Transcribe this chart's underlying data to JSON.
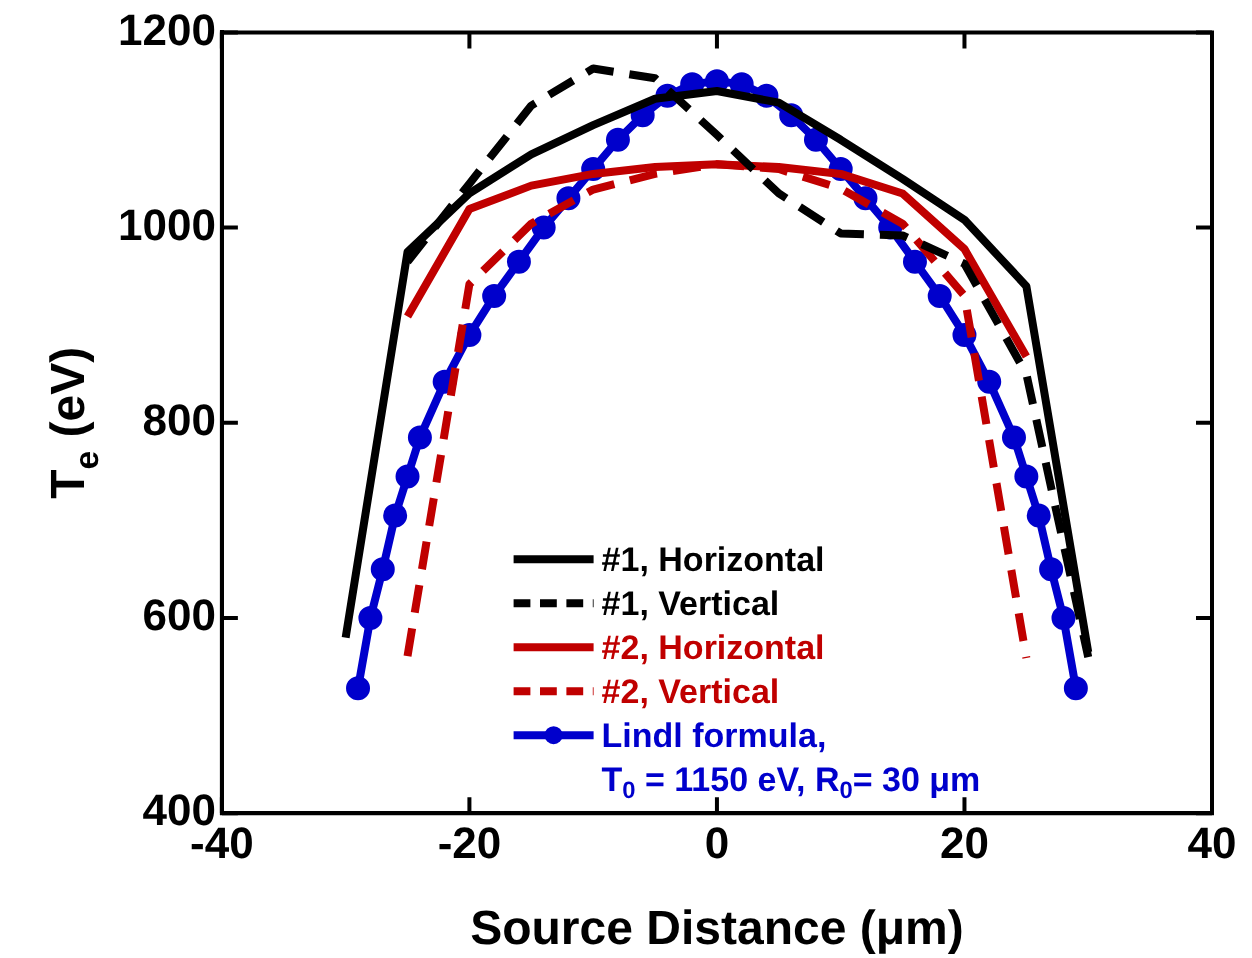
{
  "chart_data": {
    "type": "line",
    "xlabel": "Source Distance (μm)",
    "ylabel": "T$_{e}$ (eV)",
    "xlim": [
      -40,
      40
    ],
    "xticks": [
      -40,
      -20,
      0,
      20,
      40
    ],
    "ylim": [
      400,
      1200
    ],
    "yticks": [
      400,
      600,
      800,
      1000,
      1200
    ],
    "grid": false,
    "legend": "bottom",
    "marker": "none",
    "series": [
      {
        "name": "#1, Horizontal",
        "color": "#000000",
        "line_style": "solid",
        "x": [
          -30,
          -25,
          -20,
          -15,
          -10,
          -5,
          0,
          5,
          10,
          15,
          20,
          25,
          30
        ],
        "values": [
          580,
          975,
          1035,
          1075,
          1105,
          1132,
          1140,
          1128,
          1090,
          1050,
          1008,
          940,
          565
        ]
      },
      {
        "name": "#1, Vertical",
        "color": "#000000",
        "line_style": "dashed",
        "x": [
          -25,
          -20,
          -15,
          -10,
          -5,
          0,
          5,
          10,
          15,
          20,
          25,
          30
        ],
        "values": [
          965,
          1045,
          1125,
          1163,
          1153,
          1095,
          1035,
          994,
          992,
          963,
          850,
          560
        ]
      },
      {
        "name": "#2, Horizontal",
        "color": "#c00000",
        "line_style": "solid",
        "x": [
          -25,
          -20,
          -15,
          -10,
          -5,
          0,
          5,
          10,
          15,
          20,
          25
        ],
        "values": [
          909,
          1019,
          1043,
          1055,
          1062,
          1065,
          1062,
          1055,
          1035,
          978,
          868
        ]
      },
      {
        "name": "#2, Vertical",
        "color": "#c00000",
        "line_style": "dashed",
        "x": [
          -25,
          -20,
          -15,
          -10,
          -5,
          0,
          5,
          10,
          15,
          20,
          25
        ],
        "values": [
          561,
          942,
          1004,
          1039,
          1055,
          1065,
          1060,
          1040,
          1004,
          930,
          559
        ]
      },
      {
        "name": "Lindl formula,\nT$_{0}$ = 1150 eV, R$_{0}$= 30 μm",
        "color": "#0000cc",
        "line_style": "solid",
        "marker": "circle",
        "x": [
          -29,
          -28,
          -27,
          -26,
          -25,
          -24,
          -22,
          -20,
          -18,
          -16,
          -14,
          -12,
          -10,
          -8,
          -6,
          -4,
          -2,
          0,
          2,
          4,
          6,
          8,
          10,
          12,
          14,
          16,
          18,
          20,
          22,
          24,
          25,
          26,
          27,
          28,
          29
        ],
        "values": [
          528,
          600,
          650,
          705,
          745,
          785,
          842,
          890,
          930,
          965,
          1000,
          1030,
          1060,
          1090,
          1115,
          1135,
          1147,
          1150,
          1147,
          1135,
          1115,
          1090,
          1060,
          1030,
          1000,
          965,
          930,
          890,
          842,
          785,
          745,
          705,
          650,
          600,
          528
        ]
      }
    ]
  }
}
